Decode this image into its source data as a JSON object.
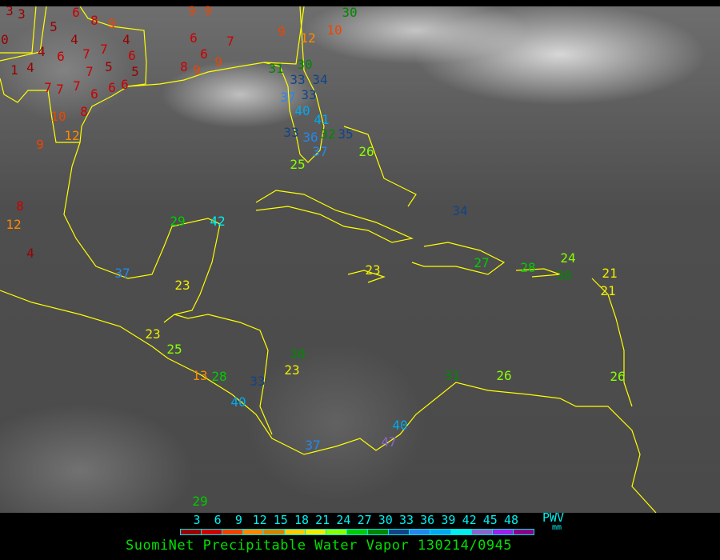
{
  "title": "SuomiNet Precipitable Water Vapor 130214/0945",
  "legend": {
    "unit_top": "PWV",
    "unit_bottom": "mm",
    "ticks": [
      "3",
      "6",
      "9",
      "12",
      "15",
      "18",
      "21",
      "24",
      "27",
      "30",
      "33",
      "36",
      "39",
      "42",
      "45",
      "48"
    ],
    "colors": [
      "#990000",
      "#cc0000",
      "#ee4400",
      "#ff8800",
      "#cc8800",
      "#ffcc00",
      "#eeee00",
      "#88ff00",
      "#00cc00",
      "#008800",
      "#114488",
      "#2288ee",
      "#00aaee",
      "#00eeee",
      "#8866cc",
      "#9922ee",
      "#880088"
    ]
  },
  "coastline_color": "#ffff00",
  "stations": [
    "3",
    "3",
    "0",
    "5",
    "6",
    "8",
    "9",
    "4",
    "4",
    "6",
    "1",
    "4",
    "7",
    "7",
    "7",
    "5",
    "4",
    "6",
    "5",
    "7",
    "7",
    "7",
    "6",
    "6",
    "6",
    "8",
    "10",
    "12",
    "9",
    "8",
    "12",
    "4",
    "9",
    "9",
    "6",
    "7",
    "6",
    "8",
    "9",
    "9",
    "9",
    "12",
    "10",
    "30",
    "30",
    "31",
    "33",
    "34",
    "33",
    "37",
    "40",
    "41",
    "32",
    "33",
    "36",
    "35",
    "37",
    "25",
    "26",
    "34",
    "29",
    "42",
    "37",
    "23",
    "23",
    "27",
    "24",
    "28",
    "30",
    "21",
    "21",
    "23",
    "25",
    "30",
    "23",
    "31",
    "26",
    "28",
    "26",
    "13",
    "33",
    "40",
    "37",
    "40",
    "47",
    "29"
  ]
}
